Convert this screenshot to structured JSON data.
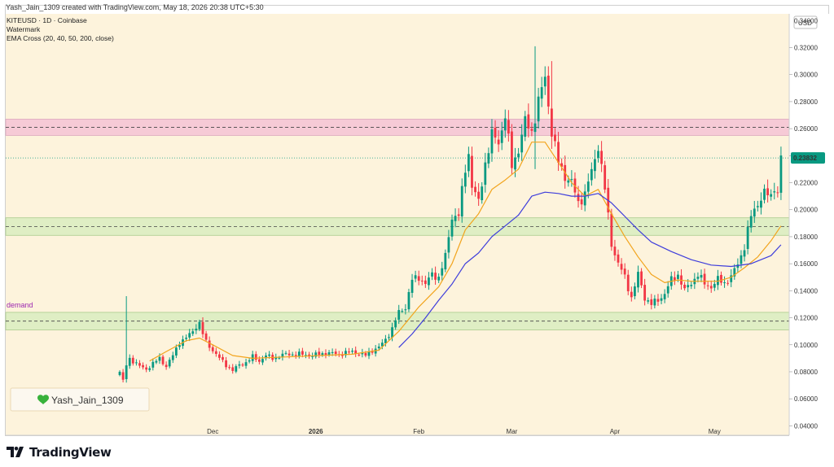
{
  "header": {
    "created_line": "Yash_Jain_1309 created with TradingView.com, May 18, 2026 20:38 UTC+5:30"
  },
  "footer": {
    "logo_text": "TradingView"
  },
  "colors": {
    "background": "#fdf3dc",
    "up_candle": "#089981",
    "down_candle": "#f23645",
    "ema_orange": "#f2a41d",
    "ema_blue": "#3e3ddb",
    "resistance_zone": "#f4c2d5",
    "support_zone": "#d9ecc0",
    "last_price_bg": "#089981"
  },
  "chart_data": {
    "type": "candlestick",
    "legend": {
      "symbol_line": "KITEUSD · 1D · Coinbase",
      "watermark_line": "Watermark",
      "indicator_line": "EMA Cross (20, 40, 50, 200, close)"
    },
    "currency_label": "USD",
    "y_ticks": [
      "0.04000",
      "0.06000",
      "0.08000",
      "0.10000",
      "0.12000",
      "0.14000",
      "0.16000",
      "0.18000",
      "0.20000",
      "0.22000",
      "0.24000",
      "0.26000",
      "0.28000",
      "0.30000",
      "0.32000"
    ],
    "y_tick_values": [
      0.04,
      0.06,
      0.08,
      0.1,
      0.12,
      0.14,
      0.16,
      0.18,
      0.2,
      0.22,
      0.24,
      0.26,
      0.28,
      0.3,
      0.32
    ],
    "top_partial_tick": "0.34000",
    "ylim": [
      0.033,
      0.345
    ],
    "x_ticks": [
      {
        "label": "Dec",
        "index": 28,
        "bold": false
      },
      {
        "label": "2026",
        "index": 59,
        "bold": true
      },
      {
        "label": "Feb",
        "index": 90,
        "bold": false
      },
      {
        "label": "Mar",
        "index": 118,
        "bold": false
      },
      {
        "label": "Apr",
        "index": 149,
        "bold": false
      },
      {
        "label": "May",
        "index": 179,
        "bold": false
      }
    ],
    "last_price": "0.23832",
    "zones": [
      {
        "name": "resistance-zone",
        "y_low": 0.255,
        "y_high": 0.267,
        "mid": 0.261
      },
      {
        "name": "mid-support-zone",
        "y_low": 0.181,
        "y_high": 0.194,
        "mid": 0.1875
      },
      {
        "name": "demand-zone",
        "y_low": 0.111,
        "y_high": 0.124,
        "mid": 0.1175,
        "label": "demand"
      }
    ],
    "watermark_text": "Yash_Jain_1309",
    "anchors": [
      {
        "i": 0,
        "v": 0.08
      },
      {
        "i": 1,
        "v": 0.073
      },
      {
        "i": 2,
        "v": 0.085
      },
      {
        "i": 3,
        "v": 0.09
      },
      {
        "i": 6,
        "v": 0.084
      },
      {
        "i": 8,
        "v": 0.082
      },
      {
        "i": 10,
        "v": 0.086
      },
      {
        "i": 12,
        "v": 0.09
      },
      {
        "i": 14,
        "v": 0.084
      },
      {
        "i": 16,
        "v": 0.092
      },
      {
        "i": 18,
        "v": 0.102
      },
      {
        "i": 20,
        "v": 0.105
      },
      {
        "i": 22,
        "v": 0.11
      },
      {
        "i": 23,
        "v": 0.114
      },
      {
        "i": 24,
        "v": 0.116
      },
      {
        "i": 25,
        "v": 0.108
      },
      {
        "i": 26,
        "v": 0.102
      },
      {
        "i": 28,
        "v": 0.096
      },
      {
        "i": 30,
        "v": 0.09
      },
      {
        "i": 32,
        "v": 0.085
      },
      {
        "i": 34,
        "v": 0.081
      },
      {
        "i": 36,
        "v": 0.085
      },
      {
        "i": 38,
        "v": 0.087
      },
      {
        "i": 40,
        "v": 0.091
      },
      {
        "i": 42,
        "v": 0.088
      },
      {
        "i": 44,
        "v": 0.092
      },
      {
        "i": 46,
        "v": 0.09
      },
      {
        "i": 50,
        "v": 0.093
      },
      {
        "i": 54,
        "v": 0.093
      },
      {
        "i": 58,
        "v": 0.092
      },
      {
        "i": 62,
        "v": 0.094
      },
      {
        "i": 66,
        "v": 0.093
      },
      {
        "i": 70,
        "v": 0.095
      },
      {
        "i": 74,
        "v": 0.092
      },
      {
        "i": 76,
        "v": 0.096
      },
      {
        "i": 78,
        "v": 0.098
      },
      {
        "i": 80,
        "v": 0.104
      },
      {
        "i": 82,
        "v": 0.112
      },
      {
        "i": 84,
        "v": 0.124
      },
      {
        "i": 86,
        "v": 0.128
      },
      {
        "i": 88,
        "v": 0.148
      },
      {
        "i": 90,
        "v": 0.15
      },
      {
        "i": 92,
        "v": 0.145
      },
      {
        "i": 94,
        "v": 0.152
      },
      {
        "i": 96,
        "v": 0.15
      },
      {
        "i": 98,
        "v": 0.165
      },
      {
        "i": 100,
        "v": 0.195
      },
      {
        "i": 102,
        "v": 0.196
      },
      {
        "i": 104,
        "v": 0.23
      },
      {
        "i": 105,
        "v": 0.242
      },
      {
        "i": 106,
        "v": 0.218
      },
      {
        "i": 108,
        "v": 0.205
      },
      {
        "i": 110,
        "v": 0.235
      },
      {
        "i": 112,
        "v": 0.255
      },
      {
        "i": 114,
        "v": 0.25
      },
      {
        "i": 116,
        "v": 0.27
      },
      {
        "i": 118,
        "v": 0.232
      },
      {
        "i": 120,
        "v": 0.245
      },
      {
        "i": 122,
        "v": 0.265
      },
      {
        "i": 124,
        "v": 0.258
      },
      {
        "i": 126,
        "v": 0.28
      },
      {
        "i": 128,
        "v": 0.298
      },
      {
        "i": 130,
        "v": 0.258
      },
      {
        "i": 132,
        "v": 0.235
      },
      {
        "i": 134,
        "v": 0.225
      },
      {
        "i": 136,
        "v": 0.22
      },
      {
        "i": 138,
        "v": 0.205
      },
      {
        "i": 140,
        "v": 0.212
      },
      {
        "i": 142,
        "v": 0.228
      },
      {
        "i": 144,
        "v": 0.248
      },
      {
        "i": 146,
        "v": 0.215
      },
      {
        "i": 148,
        "v": 0.175
      },
      {
        "i": 150,
        "v": 0.16
      },
      {
        "i": 152,
        "v": 0.15
      },
      {
        "i": 154,
        "v": 0.135
      },
      {
        "i": 156,
        "v": 0.152
      },
      {
        "i": 158,
        "v": 0.135
      },
      {
        "i": 160,
        "v": 0.13
      },
      {
        "i": 162,
        "v": 0.133
      },
      {
        "i": 164,
        "v": 0.138
      },
      {
        "i": 166,
        "v": 0.148
      },
      {
        "i": 168,
        "v": 0.152
      },
      {
        "i": 170,
        "v": 0.14
      },
      {
        "i": 172,
        "v": 0.146
      },
      {
        "i": 174,
        "v": 0.152
      },
      {
        "i": 176,
        "v": 0.145
      },
      {
        "i": 178,
        "v": 0.143
      },
      {
        "i": 180,
        "v": 0.148
      },
      {
        "i": 182,
        "v": 0.146
      },
      {
        "i": 184,
        "v": 0.15
      },
      {
        "i": 186,
        "v": 0.16
      },
      {
        "i": 188,
        "v": 0.173
      },
      {
        "i": 190,
        "v": 0.195
      },
      {
        "i": 192,
        "v": 0.205
      },
      {
        "i": 194,
        "v": 0.212
      },
      {
        "i": 196,
        "v": 0.21
      },
      {
        "i": 197,
        "v": 0.218
      },
      {
        "i": 198,
        "v": 0.212
      },
      {
        "i": 199,
        "v": 0.238
      }
    ],
    "ema_orange": [
      {
        "i": 9,
        "v": 0.088
      },
      {
        "i": 14,
        "v": 0.095
      },
      {
        "i": 20,
        "v": 0.103
      },
      {
        "i": 24,
        "v": 0.105
      },
      {
        "i": 28,
        "v": 0.1
      },
      {
        "i": 34,
        "v": 0.092
      },
      {
        "i": 40,
        "v": 0.09
      },
      {
        "i": 50,
        "v": 0.091
      },
      {
        "i": 60,
        "v": 0.092
      },
      {
        "i": 70,
        "v": 0.093
      },
      {
        "i": 78,
        "v": 0.096
      },
      {
        "i": 84,
        "v": 0.11
      },
      {
        "i": 90,
        "v": 0.128
      },
      {
        "i": 96,
        "v": 0.143
      },
      {
        "i": 100,
        "v": 0.16
      },
      {
        "i": 104,
        "v": 0.185
      },
      {
        "i": 108,
        "v": 0.197
      },
      {
        "i": 112,
        "v": 0.215
      },
      {
        "i": 116,
        "v": 0.222
      },
      {
        "i": 120,
        "v": 0.23
      },
      {
        "i": 124,
        "v": 0.25
      },
      {
        "i": 128,
        "v": 0.25
      },
      {
        "i": 132,
        "v": 0.235
      },
      {
        "i": 136,
        "v": 0.22
      },
      {
        "i": 140,
        "v": 0.21
      },
      {
        "i": 144,
        "v": 0.215
      },
      {
        "i": 148,
        "v": 0.197
      },
      {
        "i": 152,
        "v": 0.18
      },
      {
        "i": 156,
        "v": 0.165
      },
      {
        "i": 160,
        "v": 0.152
      },
      {
        "i": 164,
        "v": 0.146
      },
      {
        "i": 168,
        "v": 0.148
      },
      {
        "i": 172,
        "v": 0.147
      },
      {
        "i": 176,
        "v": 0.147
      },
      {
        "i": 180,
        "v": 0.147
      },
      {
        "i": 184,
        "v": 0.15
      },
      {
        "i": 188,
        "v": 0.157
      },
      {
        "i": 192,
        "v": 0.165
      },
      {
        "i": 196,
        "v": 0.177
      },
      {
        "i": 199,
        "v": 0.188
      }
    ],
    "ema_blue": [
      {
        "i": 84,
        "v": 0.098
      },
      {
        "i": 88,
        "v": 0.108
      },
      {
        "i": 92,
        "v": 0.12
      },
      {
        "i": 96,
        "v": 0.133
      },
      {
        "i": 100,
        "v": 0.145
      },
      {
        "i": 104,
        "v": 0.16
      },
      {
        "i": 108,
        "v": 0.168
      },
      {
        "i": 112,
        "v": 0.18
      },
      {
        "i": 116,
        "v": 0.188
      },
      {
        "i": 120,
        "v": 0.196
      },
      {
        "i": 124,
        "v": 0.21
      },
      {
        "i": 128,
        "v": 0.213
      },
      {
        "i": 132,
        "v": 0.212
      },
      {
        "i": 136,
        "v": 0.21
      },
      {
        "i": 140,
        "v": 0.21
      },
      {
        "i": 144,
        "v": 0.212
      },
      {
        "i": 148,
        "v": 0.205
      },
      {
        "i": 152,
        "v": 0.195
      },
      {
        "i": 156,
        "v": 0.185
      },
      {
        "i": 160,
        "v": 0.176
      },
      {
        "i": 166,
        "v": 0.169
      },
      {
        "i": 172,
        "v": 0.163
      },
      {
        "i": 178,
        "v": 0.159
      },
      {
        "i": 184,
        "v": 0.158
      },
      {
        "i": 190,
        "v": 0.16
      },
      {
        "i": 196,
        "v": 0.166
      },
      {
        "i": 199,
        "v": 0.174
      }
    ],
    "special_wicks": [
      {
        "i": 2,
        "high": 0.136,
        "low": 0.072
      },
      {
        "i": 125,
        "high": 0.321,
        "low": 0.23
      },
      {
        "i": 130,
        "high": 0.31,
        "low": 0.245
      }
    ]
  }
}
